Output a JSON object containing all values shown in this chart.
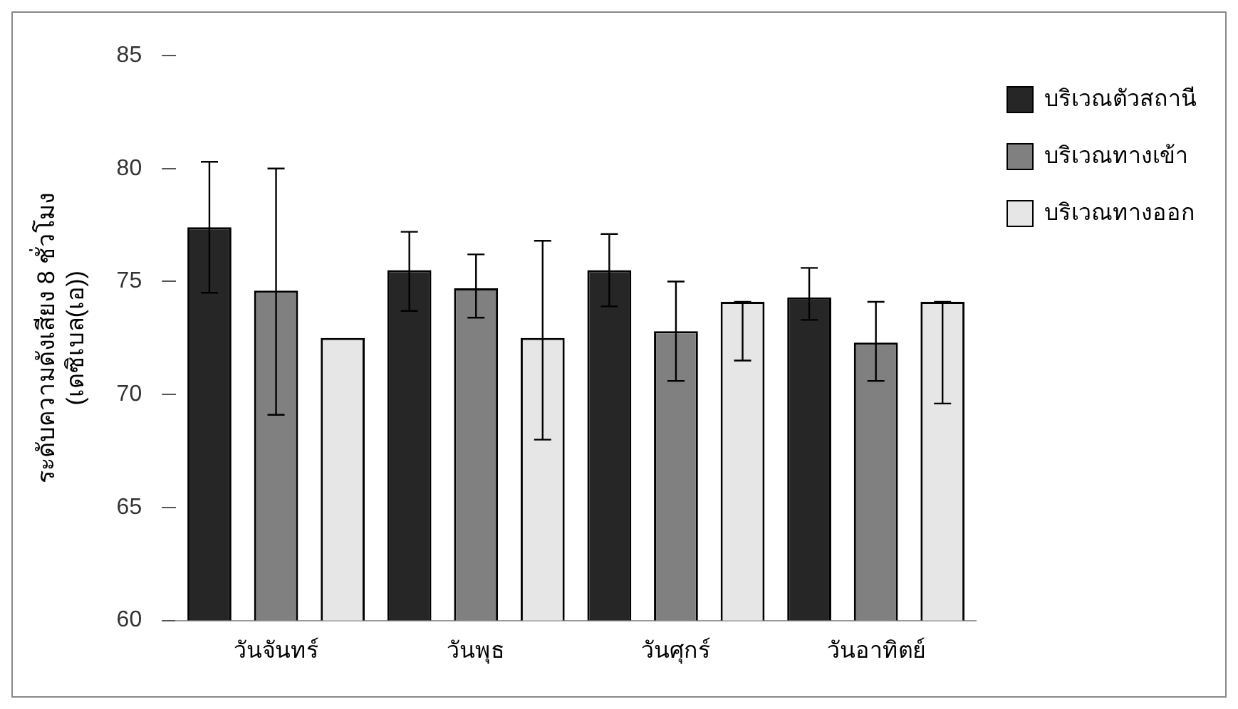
{
  "chart_data": {
    "type": "bar",
    "ylabel": "ระดับความดังเสียง 8 ชั่วโมง\n(เดซิเบล(เอ))",
    "categories": [
      "วันจันทร์",
      "วันพุธ",
      "วันศุกร์",
      "วันอาทิตย์"
    ],
    "series": [
      {
        "name": "บริเวณตัวสถานี",
        "color": "#262626",
        "values": [
          77.4,
          75.5,
          75.5,
          74.3
        ],
        "errors": [
          [
            74.5,
            80.3
          ],
          [
            73.7,
            77.2
          ],
          [
            73.9,
            77.1
          ],
          [
            73.3,
            75.6
          ]
        ]
      },
      {
        "name": "บริเวณทางเข้า",
        "color": "#808080",
        "values": [
          74.6,
          74.7,
          72.8,
          72.3
        ],
        "errors": [
          [
            69.1,
            80.0
          ],
          [
            73.4,
            76.2
          ],
          [
            70.6,
            75.0
          ],
          [
            70.6,
            74.1
          ]
        ]
      },
      {
        "name": "บริเวณทางออก",
        "color": "#e6e6e6",
        "values": [
          72.5,
          72.5,
          74.1,
          74.1
        ],
        "errors": [
          null,
          [
            68.0,
            76.8
          ],
          [
            71.5,
            74.1
          ],
          [
            69.6,
            74.1
          ]
        ]
      }
    ],
    "ylim": [
      60,
      85
    ],
    "yticks": [
      60,
      65,
      70,
      75,
      80,
      85
    ],
    "grid": false,
    "legend": "top right"
  }
}
